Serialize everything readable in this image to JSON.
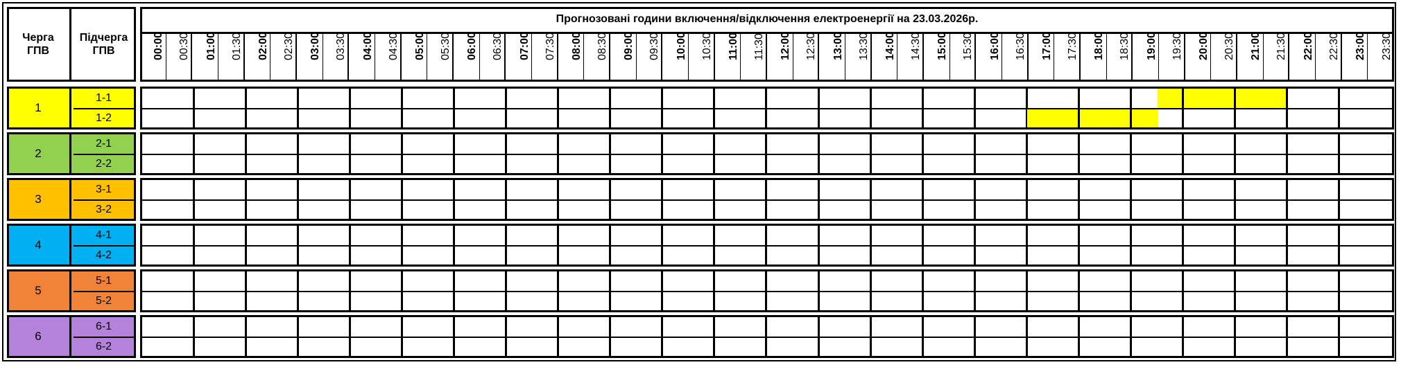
{
  "header": {
    "queue_label": "Черга ГПВ",
    "subqueue_label": "Підчерга ГПВ",
    "title": "Прогнозовані години включення/відключення електроенергії на 23.03.2026р."
  },
  "time_slots": [
    "00:00",
    "00:30",
    "01:00",
    "01:30",
    "02:00",
    "02:30",
    "03:00",
    "03:30",
    "04:00",
    "04:30",
    "05:00",
    "05:30",
    "06:00",
    "06:30",
    "07:00",
    "07:30",
    "08:00",
    "08:30",
    "09:00",
    "09:30",
    "10:00",
    "10:30",
    "11:00",
    "11:30",
    "12:00",
    "12:30",
    "13:00",
    "13:30",
    "14:00",
    "14:30",
    "15:00",
    "15:30",
    "16:00",
    "16:30",
    "17:00",
    "17:30",
    "18:00",
    "18:30",
    "19:00",
    "19:30",
    "20:00",
    "20:30",
    "21:00",
    "21:30",
    "22:00",
    "22:30",
    "23:00",
    "23:30"
  ],
  "outage_color": "#ffff00",
  "groups": [
    {
      "queue": "1",
      "color": "#ffff00",
      "subqueues": [
        {
          "label": "1-1",
          "off_slots": [
            "19:30",
            "20:00",
            "20:30",
            "21:00",
            "21:30"
          ]
        },
        {
          "label": "1-2",
          "off_slots": [
            "17:00",
            "17:30",
            "18:00",
            "18:30",
            "19:00"
          ]
        }
      ]
    },
    {
      "queue": "2",
      "color": "#92d050",
      "subqueues": [
        {
          "label": "2-1",
          "off_slots": []
        },
        {
          "label": "2-2",
          "off_slots": []
        }
      ]
    },
    {
      "queue": "3",
      "color": "#ffc000",
      "subqueues": [
        {
          "label": "3-1",
          "off_slots": []
        },
        {
          "label": "3-2",
          "off_slots": []
        }
      ]
    },
    {
      "queue": "4",
      "color": "#00b0f0",
      "subqueues": [
        {
          "label": "4-1",
          "off_slots": []
        },
        {
          "label": "4-2",
          "off_slots": []
        }
      ]
    },
    {
      "queue": "5",
      "color": "#f08338",
      "subqueues": [
        {
          "label": "5-1",
          "off_slots": []
        },
        {
          "label": "5-2",
          "off_slots": []
        }
      ]
    },
    {
      "queue": "6",
      "color": "#b482da",
      "subqueues": [
        {
          "label": "6-1",
          "off_slots": []
        },
        {
          "label": "6-2",
          "off_slots": []
        }
      ]
    }
  ]
}
